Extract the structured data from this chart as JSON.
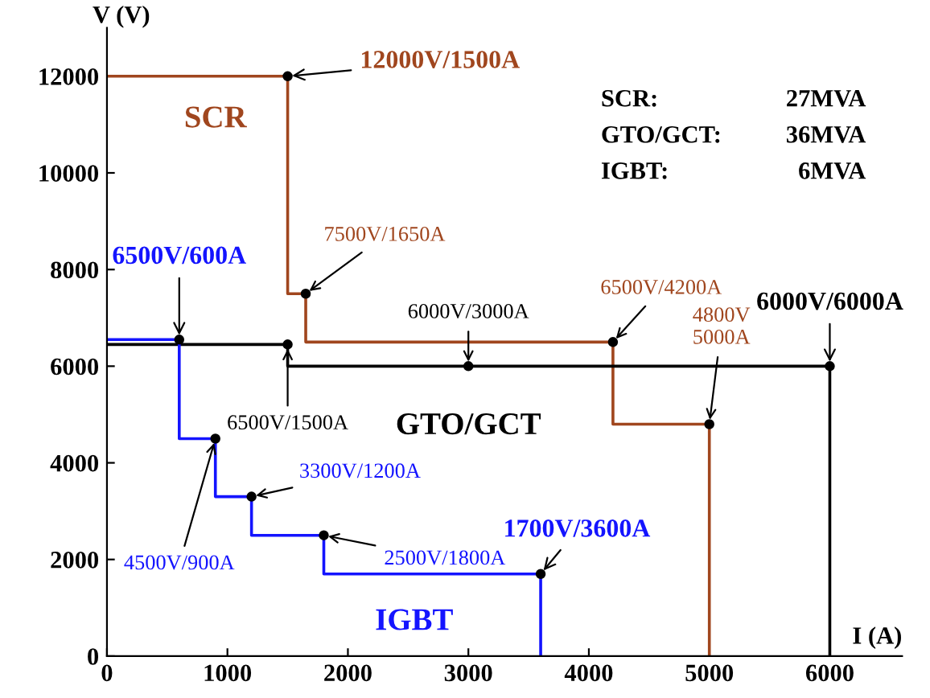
{
  "chart_data": {
    "type": "step",
    "xlabel": "I (A)",
    "ylabel": "V (V)",
    "xlim": [
      0,
      6600
    ],
    "ylim": [
      0,
      13000
    ],
    "xticks": [
      0,
      1000,
      2000,
      3000,
      4000,
      5000,
      6000
    ],
    "yticks": [
      0,
      2000,
      4000,
      6000,
      8000,
      10000,
      12000
    ],
    "grid": false,
    "legend": false,
    "series": [
      {
        "name": "SCR",
        "color": "#a0461e",
        "x": [
          0,
          1500,
          1500,
          1650,
          1650,
          4200,
          4200,
          5000,
          5000
        ],
        "values": [
          12000,
          12000,
          7500,
          7500,
          6500,
          6500,
          4800,
          4800,
          0
        ]
      },
      {
        "name": "GTO/GCT",
        "color": "#000000",
        "x": [
          0,
          1500,
          1500,
          6000,
          6000
        ],
        "values": [
          6450,
          6450,
          6000,
          6000,
          0
        ]
      },
      {
        "name": "IGBT",
        "color": "#1414ff",
        "x": [
          0,
          600,
          600,
          900,
          900,
          1200,
          1200,
          1800,
          1800,
          3600,
          3600
        ],
        "values": [
          6550,
          6550,
          4500,
          4500,
          3300,
          3300,
          2500,
          2500,
          1700,
          1700,
          0
        ]
      }
    ],
    "annotations": [
      {
        "text": "12000V/1500A",
        "x": 1500,
        "y": 12000
      },
      {
        "text": "7500V/1650A",
        "x": 1650,
        "y": 7500
      },
      {
        "text": "6000V/3000A",
        "x": 3000,
        "y": 6000
      },
      {
        "text": "6500V/4200A",
        "x": 4200,
        "y": 6500
      },
      {
        "text": "6000V/6000A",
        "x": 6000,
        "y": 6000
      },
      {
        "text": "4800V\n5000A",
        "x": 5000,
        "y": 4800
      },
      {
        "text": "6500V/600A",
        "x": 600,
        "y": 6550
      },
      {
        "text": "6500V/1500A",
        "x": 1500,
        "y": 6450
      },
      {
        "text": "4500V/900A",
        "x": 900,
        "y": 4500
      },
      {
        "text": "3300V/1200A",
        "x": 1200,
        "y": 3300
      },
      {
        "text": "2500V/1800A",
        "x": 1800,
        "y": 2500
      },
      {
        "text": "1700V/3600A",
        "x": 3600,
        "y": 1700
      },
      "SCR:  27MVA",
      "GTO/GCT:  36MVA",
      "IGBT:  6MVA"
    ]
  }
}
